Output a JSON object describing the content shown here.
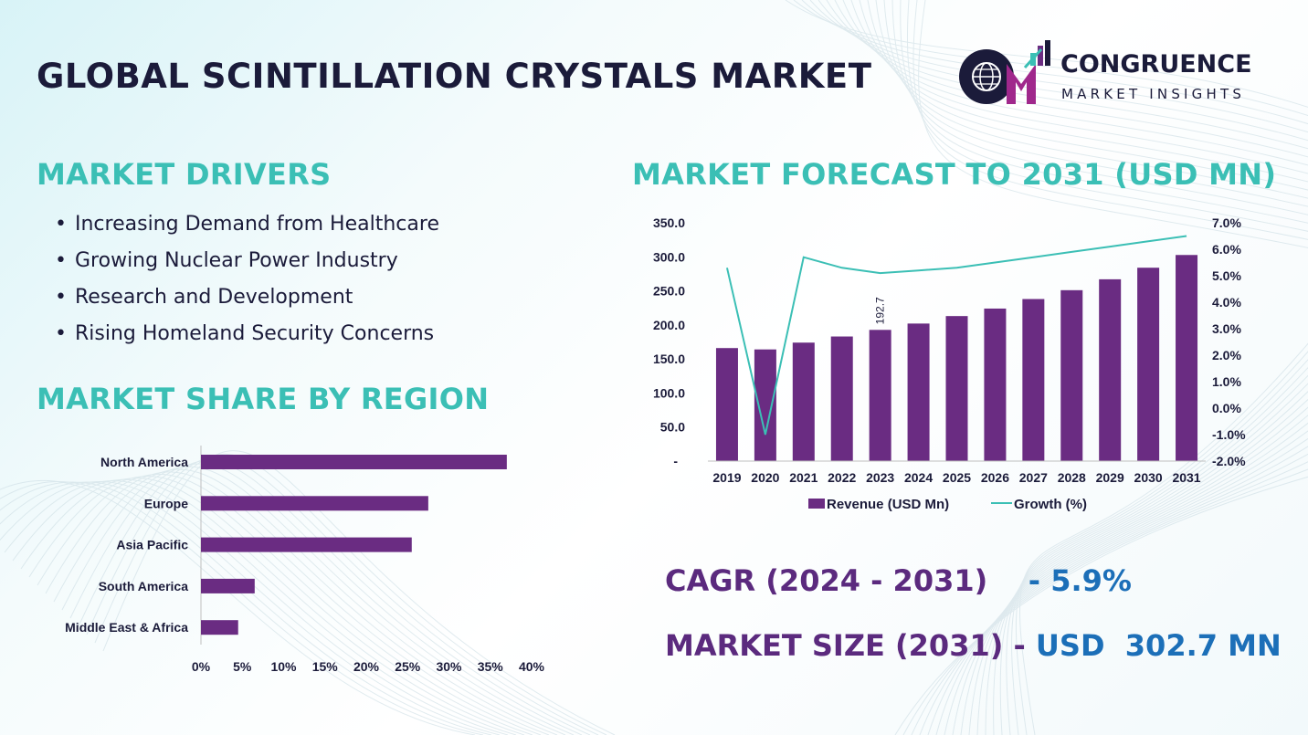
{
  "title": "GLOBAL SCINTILLATION CRYSTALS MARKET",
  "logo": {
    "line1": "CONGRUENCE",
    "line2": "MARKET INSIGHTS",
    "icon": "cm-globe-bars-logo"
  },
  "colors": {
    "heading": "#3bbfb5",
    "title": "#1b1b3a",
    "bar": "#6a2c82",
    "line": "#3bbfb5",
    "kpi_label": "#5b2a7e",
    "kpi_value": "#1c6fb8"
  },
  "drivers": {
    "heading": "MARKET DRIVERS",
    "items": [
      "Increasing Demand from Healthcare",
      "Growing Nuclear Power Industry",
      "Research and Development",
      "Rising Homeland Security Concerns"
    ]
  },
  "region": {
    "heading": "MARKET SHARE BY REGION"
  },
  "forecast": {
    "heading": "MARKET FORECAST TO 2031 (USD MN)"
  },
  "kpis": {
    "cagr_label": "CAGR (2024 - 2031)",
    "cagr_sep": "-",
    "cagr_value": "5.9%",
    "size_label": "MARKET SIZE (2031)",
    "size_sep": "-",
    "size_value": "USD  302.7 MN"
  },
  "chart_data": [
    {
      "type": "bar",
      "orientation": "horizontal",
      "title": "",
      "categories": [
        "North America",
        "Europe",
        "Asia Pacific",
        "South America",
        "Middle East & Africa"
      ],
      "values": [
        37,
        27.5,
        25.5,
        6.5,
        4.5
      ],
      "x_ticks": [
        "0%",
        "5%",
        "10%",
        "15%",
        "20%",
        "25%",
        "30%",
        "35%",
        "40%"
      ],
      "xlim": [
        0,
        40
      ],
      "unit": "%",
      "grid": false
    },
    {
      "type": "bar+line",
      "title": "",
      "categories": [
        "2019",
        "2020",
        "2021",
        "2022",
        "2023",
        "2024",
        "2025",
        "2026",
        "2027",
        "2028",
        "2029",
        "2030",
        "2031"
      ],
      "series": [
        {
          "name": "Revenue (USD Mn)",
          "type": "bar",
          "axis": "left",
          "values": [
            166,
            164,
            174,
            183,
            192.7,
            202,
            213,
            224,
            238,
            251,
            267,
            284,
            302.7
          ]
        },
        {
          "name": "Growth (%)",
          "type": "line",
          "axis": "right",
          "values": [
            5.3,
            -1.0,
            5.7,
            5.3,
            5.1,
            5.2,
            5.3,
            5.5,
            5.7,
            5.9,
            6.1,
            6.3,
            6.5
          ]
        }
      ],
      "data_labels": [
        {
          "category": "2023",
          "text": "192.7"
        }
      ],
      "y_left_ticks": [
        "-",
        "50.0",
        "100.0",
        "150.0",
        "200.0",
        "250.0",
        "300.0",
        "350.0"
      ],
      "y_left_lim": [
        0,
        350
      ],
      "y_right_ticks": [
        "-2.0%",
        "-1.0%",
        "0.0%",
        "1.0%",
        "2.0%",
        "3.0%",
        "4.0%",
        "5.0%",
        "6.0%",
        "7.0%"
      ],
      "y_right_lim": [
        -2,
        7
      ],
      "legend": "bottom",
      "grid": false
    }
  ]
}
